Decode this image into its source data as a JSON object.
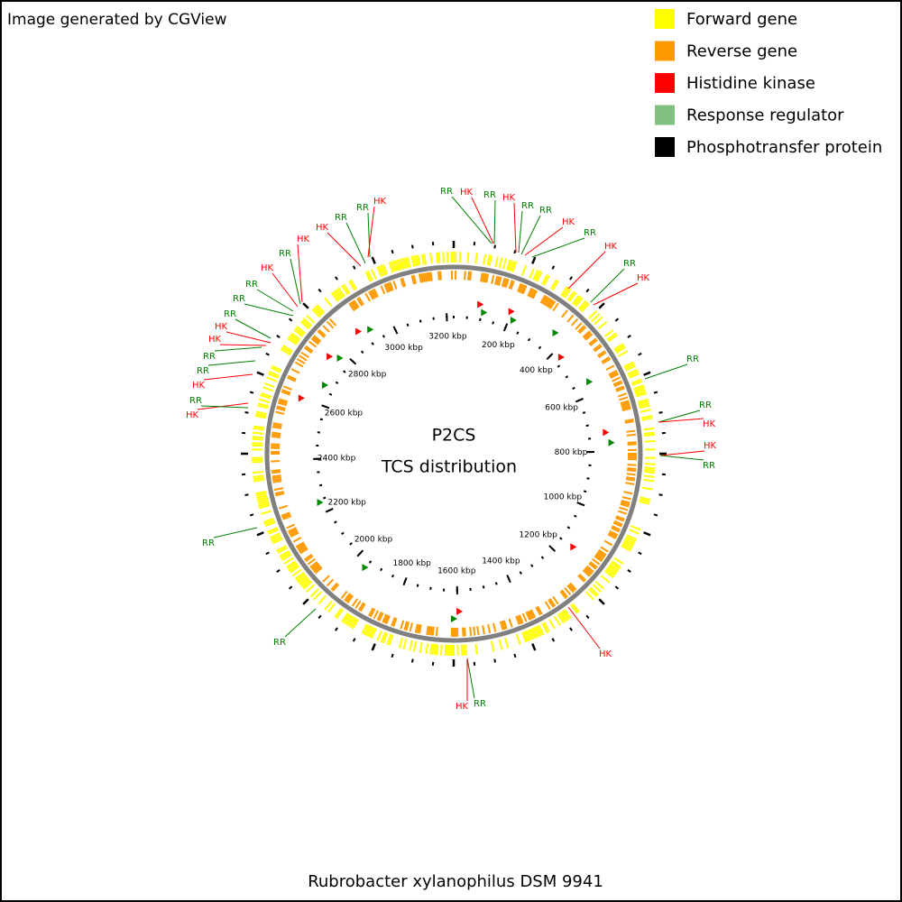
{
  "header": {
    "credit": "Image generated by CGView"
  },
  "legend": [
    {
      "name": "Forward gene",
      "color": "#ffff00"
    },
    {
      "name": "Reverse gene",
      "color": "#ff9900"
    },
    {
      "name": "Histidine kinase",
      "color": "#ff0000"
    },
    {
      "name": "Response regulator",
      "color": "#80c080"
    },
    {
      "name": "Phosphotransfer protein",
      "color": "#000000"
    }
  ],
  "center": {
    "title": "P2CS",
    "subtitle": "TCS distribution"
  },
  "ruler_labels": [
    "200 kbp",
    "400 kbp",
    "600 kbp",
    "800 kbp",
    "1000 kbp",
    "1200 kbp",
    "1400 kbp",
    "1600 kbp",
    "1800 kbp",
    "2000 kbp",
    "2200 kbp",
    "2400 kbp",
    "2600 kbp",
    "2800 kbp",
    "3000 kbp",
    "3200 kbp"
  ],
  "features": [
    {
      "label": "RR",
      "color": "#008000"
    },
    {
      "label": "HK",
      "color": "#ff0000"
    },
    {
      "label": "RR",
      "color": "#008000"
    },
    {
      "label": "HK",
      "color": "#ff0000"
    },
    {
      "label": "RR",
      "color": "#008000"
    },
    {
      "label": "RR",
      "color": "#008000"
    },
    {
      "label": "HK",
      "color": "#ff0000"
    },
    {
      "label": "RR",
      "color": "#008000"
    },
    {
      "label": "HK",
      "color": "#ff0000"
    },
    {
      "label": "RR",
      "color": "#008000"
    },
    {
      "label": "HK",
      "color": "#ff0000"
    },
    {
      "label": "RR",
      "color": "#008000"
    },
    {
      "label": "RR",
      "color": "#008000"
    },
    {
      "label": "HK",
      "color": "#ff0000"
    },
    {
      "label": "HK",
      "color": "#ff0000"
    },
    {
      "label": "RR",
      "color": "#008000"
    },
    {
      "label": "HK",
      "color": "#ff0000"
    },
    {
      "label": "RR",
      "color": "#008000"
    },
    {
      "label": "HK",
      "color": "#ff0000"
    },
    {
      "label": "RR",
      "color": "#008000"
    },
    {
      "label": "RR",
      "color": "#008000"
    },
    {
      "label": "HK",
      "color": "#ff0000"
    },
    {
      "label": "RR",
      "color": "#008000"
    },
    {
      "label": "HK",
      "color": "#ff0000"
    },
    {
      "label": "RR",
      "color": "#008000"
    },
    {
      "label": "RR",
      "color": "#008000"
    },
    {
      "label": "HK",
      "color": "#ff0000"
    },
    {
      "label": "HK",
      "color": "#ff0000"
    },
    {
      "label": "RR",
      "color": "#008000"
    },
    {
      "label": "RR",
      "color": "#008000"
    },
    {
      "label": "RR",
      "color": "#008000"
    },
    {
      "label": "HK",
      "color": "#ff0000"
    },
    {
      "label": "RR",
      "color": "#008000"
    },
    {
      "label": "HK",
      "color": "#ff0000"
    },
    {
      "label": "HK",
      "color": "#ff0000"
    },
    {
      "label": "RR",
      "color": "#008000"
    },
    {
      "label": "RR",
      "color": "#008000"
    },
    {
      "label": "HK",
      "color": "#ff0000"
    }
  ],
  "footer": {
    "organism": "Rubrobacter xylanophilus DSM 9941"
  }
}
